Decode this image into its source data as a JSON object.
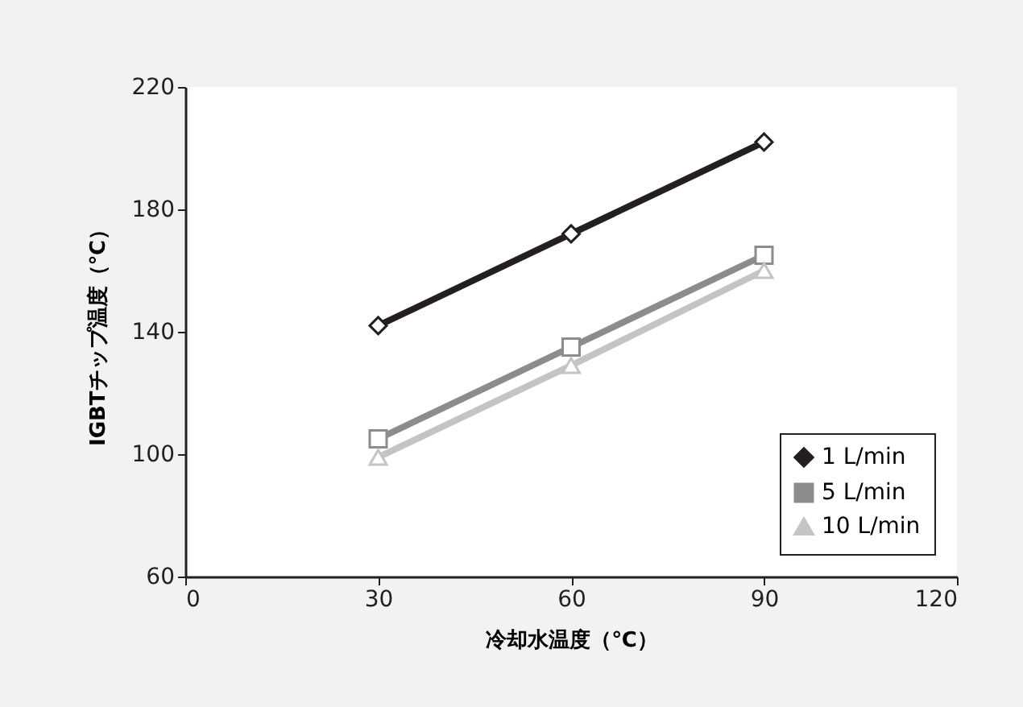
{
  "chart_data": {
    "type": "line",
    "xlabel": "冷却水温度（℃）",
    "ylabel": "IGBTチップ温度（℃）",
    "x": [
      30,
      60,
      90
    ],
    "series": [
      {
        "name": "1 L/min",
        "color": "#231f20",
        "marker": "diamond",
        "values": [
          142,
          172,
          202
        ]
      },
      {
        "name": "5 L/min",
        "color": "#8c8c8c",
        "marker": "square",
        "values": [
          105,
          135,
          165
        ]
      },
      {
        "name": "10 L/min",
        "color": "#c4c4c4",
        "marker": "triangle",
        "values": [
          99,
          129,
          160
        ]
      }
    ],
    "xlim": [
      0,
      120
    ],
    "xticks": [
      0,
      30,
      60,
      90,
      120
    ],
    "ylim": [
      60,
      220
    ],
    "yticks": [
      60,
      100,
      140,
      180,
      220
    ],
    "grid": false,
    "legend": "bottom right",
    "line_style": "solid"
  }
}
